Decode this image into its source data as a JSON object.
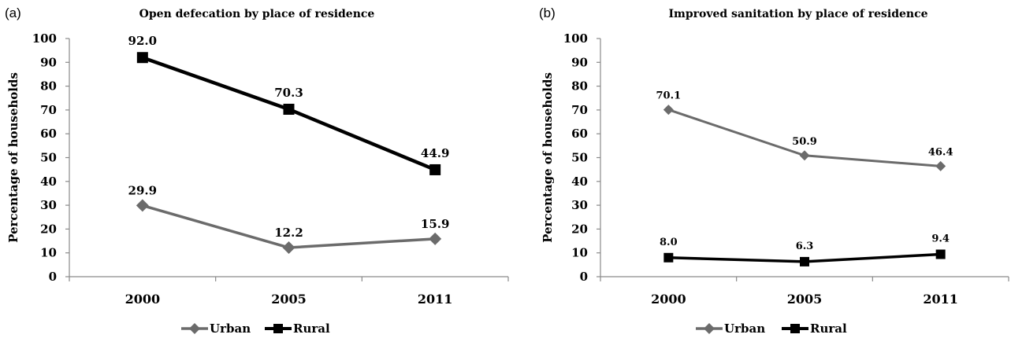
{
  "chart_data": [
    {
      "type": "line",
      "panel": "(a)",
      "title": "Open defecation by place of residence",
      "ylabel": "Percentage of households",
      "xlabel": "",
      "categories": [
        "2000",
        "2005",
        "2011"
      ],
      "ylim": [
        0,
        100
      ],
      "yticks": [
        "0",
        "10",
        "20",
        "30",
        "40",
        "50",
        "60",
        "70",
        "80",
        "90",
        "100"
      ],
      "grid": false,
      "legend": "bottom",
      "series": [
        {
          "name": "Urban",
          "values": [
            29.9,
            12.2,
            15.9
          ],
          "labels": [
            "29.9",
            "12.2",
            "15.9"
          ],
          "color": "#6b6b6b",
          "marker": "diamond"
        },
        {
          "name": "Rural",
          "values": [
            92.0,
            70.3,
            44.9
          ],
          "labels": [
            "92.0",
            "70.3",
            "44.9"
          ],
          "color": "#000000",
          "marker": "square"
        }
      ]
    },
    {
      "type": "line",
      "panel": "(b)",
      "title": "Improved sanitation by place of residence",
      "ylabel": "Percentage of households",
      "xlabel": "",
      "categories": [
        "2000",
        "2005",
        "2011"
      ],
      "ylim": [
        0,
        100
      ],
      "yticks": [
        "0",
        "10",
        "20",
        "30",
        "40",
        "50",
        "60",
        "70",
        "80",
        "90",
        "100"
      ],
      "grid": false,
      "legend": "bottom",
      "series": [
        {
          "name": "Urban",
          "values": [
            70.1,
            50.9,
            46.4
          ],
          "labels": [
            "70.1",
            "50.9",
            "46.4"
          ],
          "color": "#6b6b6b",
          "marker": "diamond"
        },
        {
          "name": "Rural",
          "values": [
            8.0,
            6.3,
            9.4
          ],
          "labels": [
            "8.0",
            "6.3",
            "9.4"
          ],
          "color": "#000000",
          "marker": "square"
        }
      ]
    }
  ]
}
